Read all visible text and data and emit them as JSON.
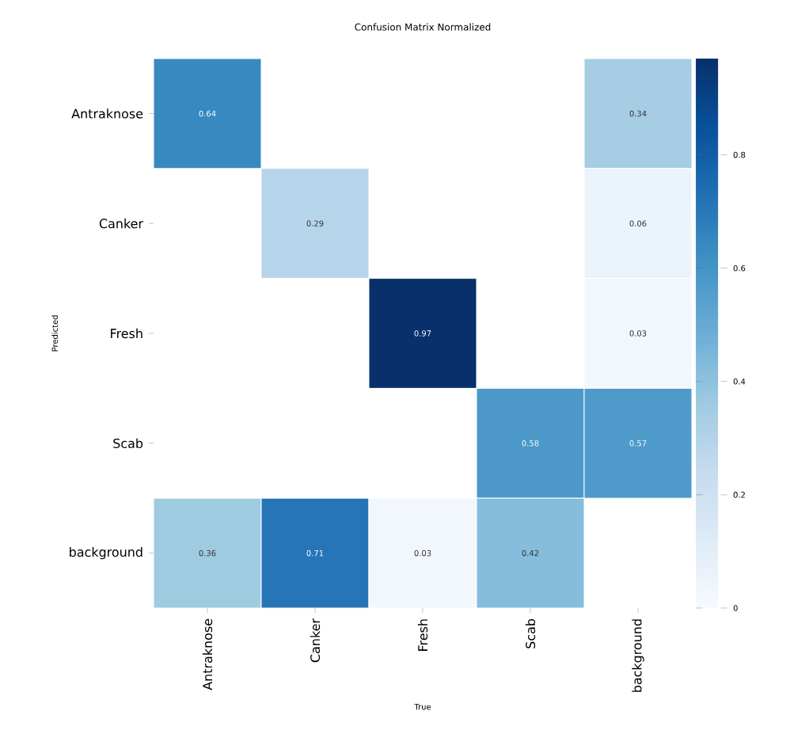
{
  "chart_data": {
    "type": "heatmap",
    "title": "Confusion Matrix Normalized",
    "xlabel": "True",
    "ylabel": "Predicted",
    "categories": [
      "Antraknose",
      "Canker",
      "Fresh",
      "Scab",
      "background"
    ],
    "y_categories": [
      "Antraknose",
      "Canker",
      "Fresh",
      "Scab",
      "background"
    ],
    "cells": [
      [
        0.64,
        null,
        null,
        null,
        0.34
      ],
      [
        null,
        0.29,
        null,
        null,
        0.06
      ],
      [
        null,
        null,
        0.97,
        null,
        0.03
      ],
      [
        null,
        null,
        null,
        0.58,
        0.57
      ],
      [
        0.36,
        0.71,
        0.03,
        0.42,
        null
      ]
    ],
    "clim": [
      0,
      0.97
    ],
    "cticks": [
      0,
      0.2,
      0.4,
      0.6,
      0.8
    ],
    "data_labels": true
  }
}
